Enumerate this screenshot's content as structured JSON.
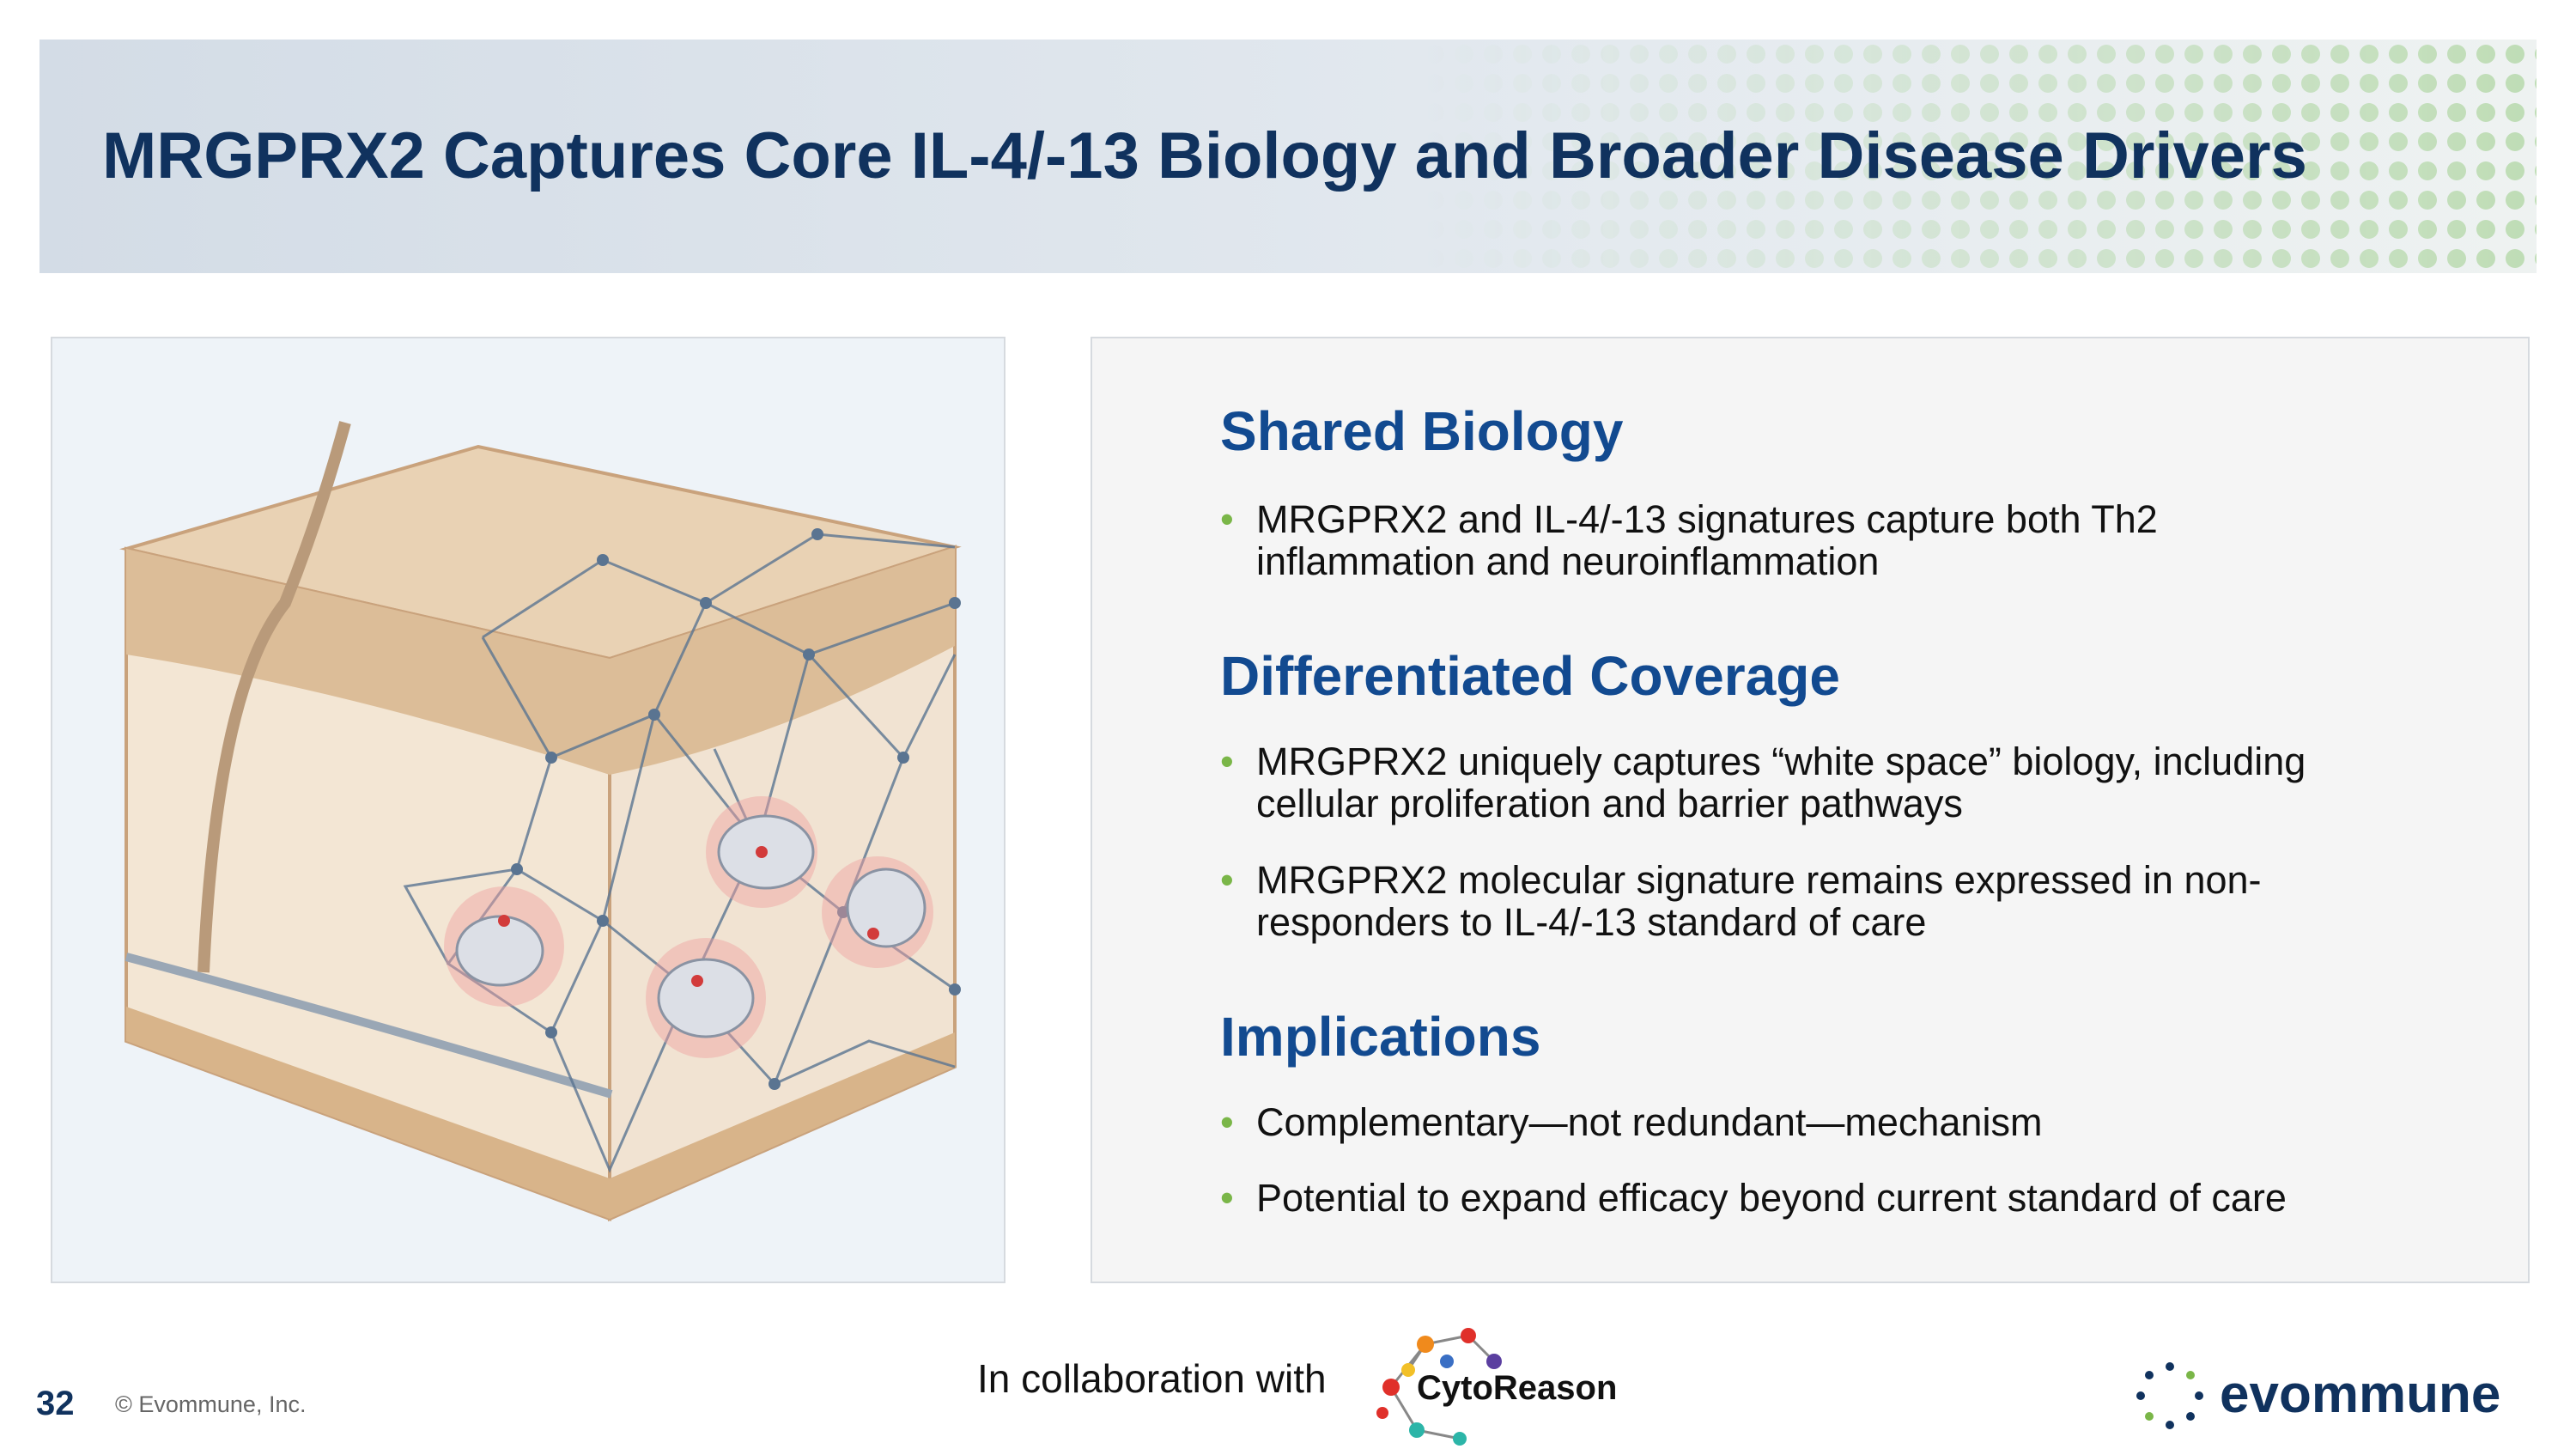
{
  "header": {
    "title": "MRGPRX2 Captures Core IL-4/-13 Biology and Broader Disease Drivers"
  },
  "sections": [
    {
      "heading": "Shared Biology",
      "bullets": [
        "MRGPRX2 and IL-4/-13 signatures capture both Th2 inflammation and neuroinflammation"
      ]
    },
    {
      "heading": "Differentiated Coverage",
      "bullets": [
        "MRGPRX2 uniquely captures “white space” biology, including cellular proliferation and barrier pathways",
        "MRGPRX2 molecular signature remains expressed in non-responders to IL-4/-13 standard of care"
      ]
    },
    {
      "heading": "Implications",
      "bullets": [
        "Complementary—not redundant—mechanism",
        "Potential to expand efficacy beyond current standard of care"
      ]
    }
  ],
  "footer": {
    "page_number": "32",
    "copyright": "© Evommune, Inc.",
    "collaboration": "In collaboration with",
    "partner_logo": "CytoReason",
    "company_logo": "evommune"
  }
}
